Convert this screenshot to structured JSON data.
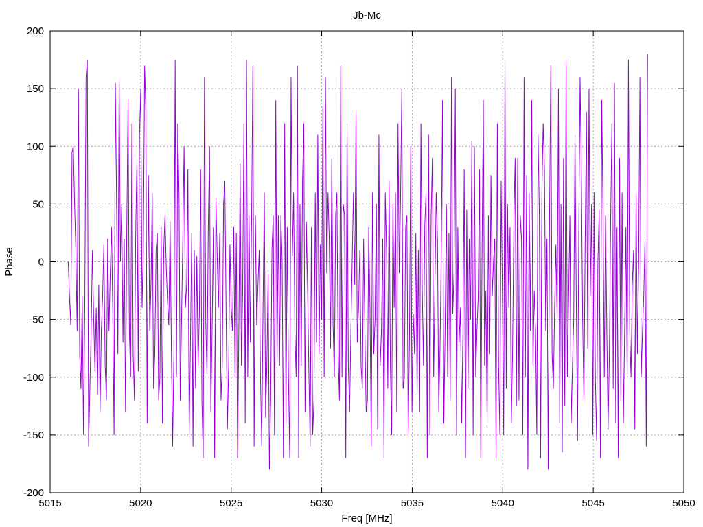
{
  "chart_data": {
    "type": "line",
    "title": "Jb-Mc",
    "xlabel": "Freq [MHz]",
    "ylabel": "Phase",
    "xlim": [
      5015,
      5050
    ],
    "ylim": [
      -200,
      200
    ],
    "xticks": [
      5015,
      5020,
      5025,
      5030,
      5035,
      5040,
      5045,
      5050
    ],
    "yticks": [
      -200,
      -150,
      -100,
      -50,
      0,
      50,
      100,
      150,
      200
    ],
    "grid": true,
    "series_color": "#9400d3",
    "series": [
      {
        "x_start": 5016.0,
        "x_end": 5048.0,
        "values": [
          0,
          -30,
          -55,
          95,
          100,
          50,
          10,
          -60,
          150,
          -80,
          -110,
          -30,
          -150,
          -40,
          160,
          175,
          -160,
          -110,
          -60,
          10,
          -50,
          -95,
          -40,
          -115,
          -20,
          -130,
          -60,
          -30,
          15,
          -90,
          -120,
          20,
          -60,
          -10,
          30,
          -45,
          -150,
          155,
          50,
          -80,
          160,
          0,
          50,
          -70,
          20,
          -130,
          30,
          140,
          -60,
          -100,
          120,
          -80,
          -120,
          25,
          90,
          -95,
          110,
          150,
          -40,
          10,
          170,
          130,
          -140,
          75,
          -60,
          -20,
          60,
          -110,
          -80,
          10,
          25,
          -120,
          -100,
          30,
          -140,
          10,
          40,
          -5,
          -35,
          -55,
          35,
          -75,
          -160,
          -80,
          175,
          -100,
          120,
          60,
          -120,
          -50,
          20,
          100,
          -40,
          -20,
          80,
          -150,
          -70,
          25,
          -160,
          10,
          -110,
          5,
          -90,
          -45,
          80,
          -120,
          -170,
          160,
          -50,
          -100,
          30,
          100,
          -130,
          -60,
          30,
          -170,
          55,
          5,
          -40,
          25,
          -120,
          -90,
          50,
          70,
          -45,
          -145,
          -90,
          15,
          -40,
          -60,
          30,
          -100,
          25,
          -170,
          -60,
          85,
          -90,
          -25,
          120,
          -140,
          175,
          -100,
          40,
          -70,
          35,
          170,
          -160,
          40,
          -55,
          -20,
          10,
          -100,
          -160,
          -40,
          60,
          -135,
          -90,
          -10,
          -180,
          -120,
          10,
          40,
          -150,
          140,
          -90,
          40,
          -90,
          40,
          0,
          -170,
          120,
          -140,
          30,
          -100,
          -170,
          160,
          5,
          60,
          -60,
          -100,
          170,
          -170,
          50,
          -90,
          70,
          120,
          -130,
          35,
          -25,
          -95,
          -160,
          30,
          -150,
          -120,
          60,
          -70,
          110,
          -80,
          15,
          -50,
          135,
          -100,
          160,
          -10,
          60,
          20,
          -75,
          90,
          -55,
          -100,
          40,
          60,
          -80,
          -120,
          170,
          -100,
          50,
          40,
          -170,
          120,
          -90,
          -130,
          -60,
          0,
          60,
          -20,
          130,
          -70,
          -40,
          10,
          -90,
          -110,
          20,
          -60,
          -130,
          -120,
          30,
          -40,
          -160,
          60,
          -80,
          -50,
          50,
          -145,
          110,
          -90,
          -60,
          20,
          -170,
          60,
          10,
          -110,
          70,
          -90,
          -150,
          50,
          -40,
          60,
          -130,
          120,
          -10,
          55,
          150,
          -110,
          -100,
          30,
          40,
          -150,
          -65,
          100,
          -130,
          -45,
          -80,
          25,
          -115,
          10,
          -130,
          120,
          -20,
          -90,
          30,
          60,
          -170,
          110,
          -150,
          40,
          90,
          -100,
          -20,
          60,
          20,
          -130,
          -75,
          10,
          140,
          -140,
          -60,
          50,
          -100,
          25,
          -120,
          160,
          -45,
          -10,
          150,
          -150,
          30,
          -70,
          -40,
          -140,
          -60,
          80,
          -170,
          45,
          -110,
          20,
          -50,
          105,
          -150,
          100,
          -100,
          -60,
          -30,
          80,
          -170,
          10,
          140,
          -90,
          -25,
          -140,
          40,
          -80,
          75,
          -30,
          0,
          20,
          -170,
          120,
          -90,
          -150,
          70,
          -30,
          -150,
          175,
          -110,
          50,
          -40,
          30,
          -140,
          -75,
          35,
          90,
          -125,
          90,
          -120,
          40,
          20,
          -150,
          160,
          -100,
          75,
          -180,
          60,
          -60,
          140,
          -90,
          -25,
          -60,
          -150,
          110,
          40,
          -170,
          60,
          120,
          80,
          -60,
          20,
          -180,
          40,
          170,
          -80,
          -110,
          -40,
          15,
          -50,
          150,
          -140,
          50,
          -165,
          90,
          -125,
          175,
          -100,
          -30,
          40,
          -140,
          -90,
          -50,
          110,
          -30,
          -155,
          30,
          160,
          75,
          -50,
          -120,
          20,
          130,
          -75,
          150,
          -30,
          50,
          -150,
          60,
          -100,
          -155,
          0,
          45,
          -170,
          140,
          45,
          -100,
          40,
          -60,
          -145,
          -80,
          35,
          120,
          -110,
          155,
          -140,
          30,
          -170,
          90,
          -120,
          60,
          -140,
          -60,
          30,
          -100,
          175,
          -60,
          -100,
          -20,
          10,
          -145,
          60,
          -80,
          0,
          160,
          -100,
          -60,
          -30,
          20,
          -160,
          180
        ]
      }
    ]
  }
}
